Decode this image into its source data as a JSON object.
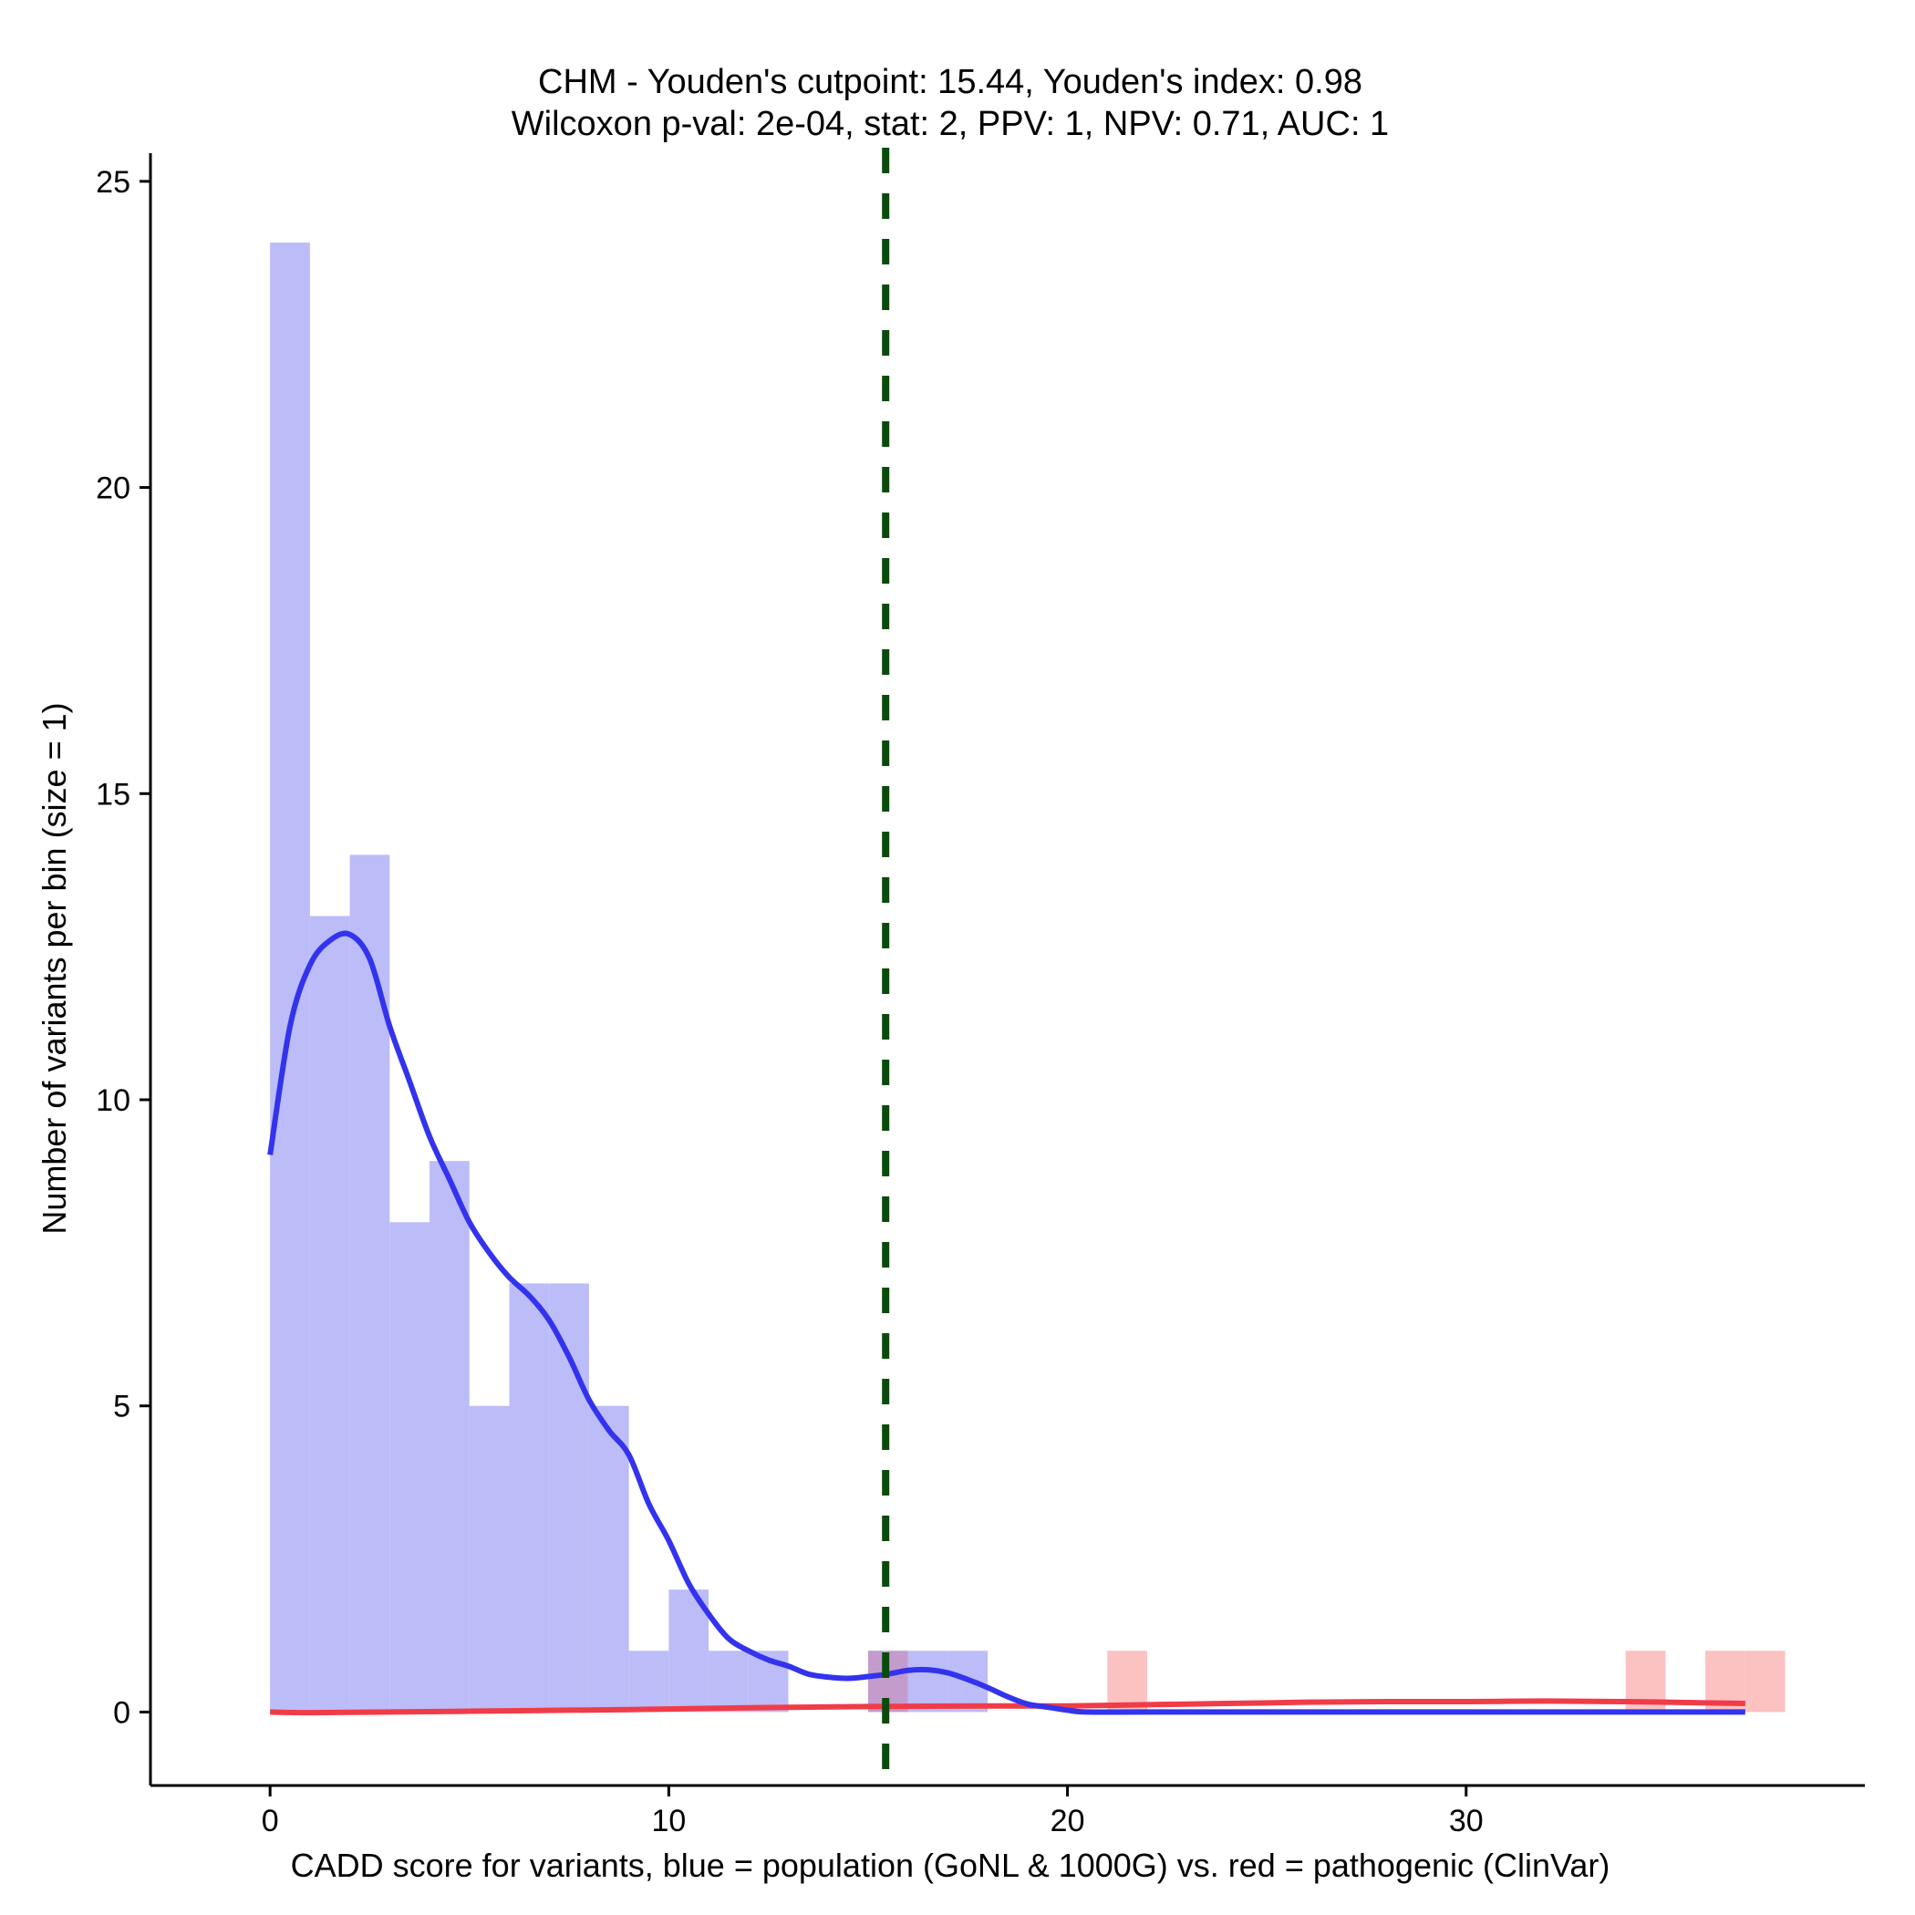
{
  "chart_data": {
    "type": "bar",
    "title": "CHM - Youden's cutpoint: 15.44, Youden's index: 0.98",
    "subtitle": "Wilcoxon p-val: 2e-04, stat: 2, PPV: 1, NPV: 0.71, AUC: 1",
    "xlabel": "CADD score for variants, blue = population (GoNL & 1000G) vs. red = pathogenic (ClinVar)",
    "ylabel": "Number of variants per bin (size = 1)",
    "xlim": [
      -3,
      40
    ],
    "ylim": [
      -1.2,
      25.4
    ],
    "xticks": [
      0,
      10,
      20,
      30
    ],
    "yticks": [
      0,
      5,
      10,
      15,
      20,
      25
    ],
    "bin_size": 1,
    "grid": false,
    "cutpoint": 15.44,
    "colors": {
      "population": "#bcbcf8",
      "pathogenic": "#fcc1c1",
      "overlap": "#c49ccc",
      "population_line": "#3333ee",
      "pathogenic_line": "#f03c48",
      "cutpoint_line": "#0a4a0a"
    },
    "series": [
      {
        "name": "population (GoNL & 1000G)",
        "bins": [
          {
            "x": 0,
            "count": 24
          },
          {
            "x": 1,
            "count": 13
          },
          {
            "x": 2,
            "count": 14
          },
          {
            "x": 3,
            "count": 8
          },
          {
            "x": 4,
            "count": 9
          },
          {
            "x": 5,
            "count": 5
          },
          {
            "x": 6,
            "count": 7
          },
          {
            "x": 7,
            "count": 7
          },
          {
            "x": 8,
            "count": 5
          },
          {
            "x": 9,
            "count": 1
          },
          {
            "x": 10,
            "count": 2
          },
          {
            "x": 11,
            "count": 1
          },
          {
            "x": 12,
            "count": 1
          },
          {
            "x": 15,
            "count": 1
          },
          {
            "x": 16,
            "count": 1
          },
          {
            "x": 17,
            "count": 1
          }
        ],
        "density_curve": [
          [
            0,
            9.1
          ],
          [
            0.5,
            11.2
          ],
          [
            1,
            12.2
          ],
          [
            1.5,
            12.6
          ],
          [
            2,
            12.7
          ],
          [
            2.5,
            12.3
          ],
          [
            3,
            11.2
          ],
          [
            3.5,
            10.3
          ],
          [
            4,
            9.4
          ],
          [
            4.5,
            8.7
          ],
          [
            5,
            8.0
          ],
          [
            5.5,
            7.5
          ],
          [
            6,
            7.1
          ],
          [
            6.5,
            6.8
          ],
          [
            7,
            6.4
          ],
          [
            7.5,
            5.8
          ],
          [
            8,
            5.1
          ],
          [
            8.5,
            4.6
          ],
          [
            9,
            4.2
          ],
          [
            9.5,
            3.4
          ],
          [
            10,
            2.8
          ],
          [
            10.5,
            2.1
          ],
          [
            11,
            1.6
          ],
          [
            11.5,
            1.2
          ],
          [
            12,
            1.0
          ],
          [
            12.5,
            0.85
          ],
          [
            13,
            0.75
          ],
          [
            13.5,
            0.62
          ],
          [
            14,
            0.57
          ],
          [
            14.5,
            0.55
          ],
          [
            15,
            0.58
          ],
          [
            15.5,
            0.62
          ],
          [
            16,
            0.68
          ],
          [
            16.5,
            0.69
          ],
          [
            17,
            0.64
          ],
          [
            17.5,
            0.53
          ],
          [
            18,
            0.4
          ],
          [
            18.5,
            0.25
          ],
          [
            19,
            0.13
          ],
          [
            19.5,
            0.08
          ],
          [
            20,
            0.03
          ],
          [
            20.5,
            0.0
          ],
          [
            22,
            0.0
          ],
          [
            25,
            0.0
          ],
          [
            30,
            0.0
          ],
          [
            35,
            0.0
          ],
          [
            37,
            0.0
          ]
        ]
      },
      {
        "name": "pathogenic (ClinVar)",
        "bins": [
          {
            "x": 15,
            "count": 1
          },
          {
            "x": 21,
            "count": 1
          },
          {
            "x": 34,
            "count": 1
          },
          {
            "x": 36,
            "count": 1
          },
          {
            "x": 37,
            "count": 1
          }
        ],
        "density_curve": [
          [
            0,
            0.0
          ],
          [
            1,
            -0.01
          ],
          [
            3,
            0.0
          ],
          [
            6,
            0.02
          ],
          [
            9,
            0.04
          ],
          [
            12,
            0.07
          ],
          [
            15,
            0.09
          ],
          [
            18,
            0.1
          ],
          [
            20,
            0.1
          ],
          [
            22,
            0.12
          ],
          [
            24,
            0.14
          ],
          [
            26,
            0.16
          ],
          [
            28,
            0.17
          ],
          [
            30,
            0.17
          ],
          [
            32,
            0.18
          ],
          [
            34,
            0.17
          ],
          [
            36,
            0.15
          ],
          [
            37,
            0.14
          ]
        ]
      }
    ]
  }
}
